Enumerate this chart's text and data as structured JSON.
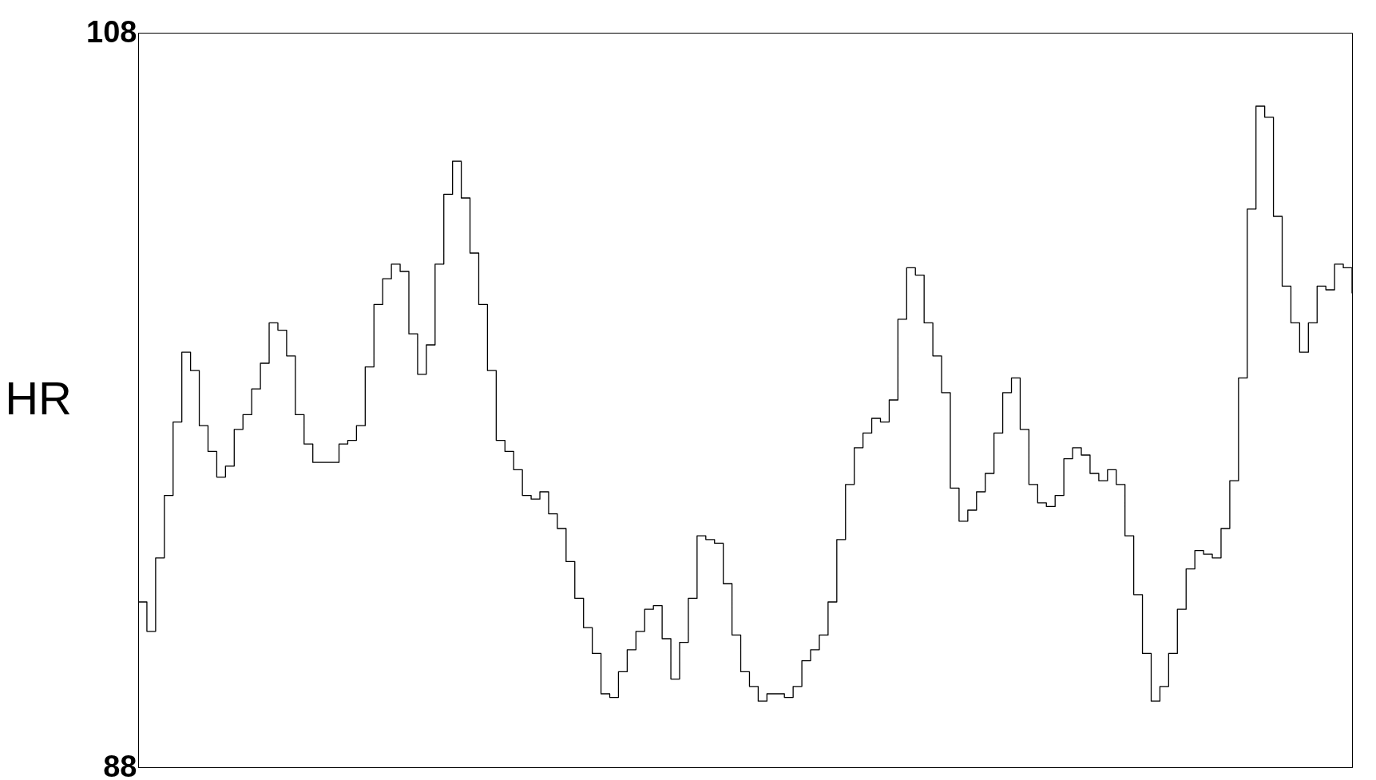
{
  "chart_data": {
    "type": "step",
    "ylabel": "HR",
    "ylim": [
      88,
      108
    ],
    "yticks": [
      88,
      108
    ],
    "grid": false,
    "tick_labels": "y",
    "categories": [
      null,
      null,
      null,
      null,
      null,
      null,
      null,
      null,
      null,
      null,
      null,
      null,
      null,
      null,
      null,
      null,
      null,
      null,
      null,
      null,
      null,
      null,
      null,
      null,
      null,
      null,
      null,
      null,
      null,
      null,
      null,
      null,
      null,
      null,
      null,
      null,
      null,
      null,
      null,
      null,
      null,
      null,
      null,
      null,
      null,
      null,
      null,
      null,
      null,
      null,
      null,
      null,
      null,
      null,
      null,
      null,
      null,
      null,
      null,
      null,
      null,
      null,
      null,
      null,
      null,
      null,
      null,
      null,
      null,
      null,
      null,
      null,
      null,
      null,
      null,
      null,
      null,
      null,
      null,
      null,
      null,
      null,
      null,
      null,
      null,
      null,
      null,
      null,
      null,
      null,
      null,
      null,
      null,
      null,
      null,
      null,
      null,
      null,
      null,
      null,
      null,
      null,
      null,
      null,
      null,
      null,
      null,
      null,
      null,
      null,
      null,
      null,
      null,
      null,
      null,
      null,
      null,
      null,
      null,
      null,
      null,
      null,
      null,
      null,
      null,
      null,
      null,
      null,
      null,
      null,
      null,
      null,
      null,
      null,
      null,
      null,
      null,
      null,
      null,
      null
    ],
    "series": [
      {
        "color": "#000000",
        "values": [
          92.5,
          91.7,
          93.7,
          95.4,
          97.4,
          99.3,
          98.8,
          97.3,
          96.6,
          95.9,
          96.2,
          97.2,
          97.6,
          98.3,
          99.0,
          100.1,
          99.9,
          99.2,
          97.6,
          96.8,
          96.3,
          96.3,
          96.3,
          96.8,
          96.9,
          97.3,
          98.9,
          100.6,
          101.3,
          101.7,
          101.5,
          99.8,
          98.7,
          99.5,
          101.7,
          103.6,
          104.5,
          103.5,
          102.0,
          100.6,
          98.8,
          96.9,
          96.6,
          96.1,
          95.4,
          95.3,
          95.5,
          94.9,
          94.5,
          93.6,
          92.6,
          91.8,
          91.1,
          90.0,
          89.9,
          90.6,
          91.2,
          91.7,
          92.3,
          92.4,
          91.5,
          90.4,
          91.4,
          92.6,
          94.3,
          94.2,
          94.1,
          93.0,
          91.6,
          90.6,
          90.2,
          89.8,
          90.0,
          90.0,
          89.9,
          90.2,
          90.9,
          91.2,
          91.6,
          92.5,
          94.2,
          95.7,
          96.7,
          97.1,
          97.5,
          97.4,
          98.0,
          100.2,
          101.6,
          101.4,
          100.1,
          99.2,
          98.2,
          95.6,
          94.7,
          95.0,
          95.5,
          96.0,
          97.1,
          98.2,
          98.6,
          97.2,
          95.7,
          95.2,
          95.1,
          95.4,
          96.4,
          96.7,
          96.5,
          96.0,
          95.8,
          96.1,
          95.7,
          94.3,
          92.7,
          91.1,
          89.8,
          90.2,
          91.1,
          92.3,
          93.4,
          93.9,
          93.8,
          93.7,
          94.5,
          95.8,
          98.6,
          103.2,
          106.0,
          105.7,
          103.0,
          101.1,
          100.1,
          99.3,
          100.1,
          101.1,
          101.0,
          101.7,
          101.6,
          100.9
        ]
      }
    ]
  }
}
